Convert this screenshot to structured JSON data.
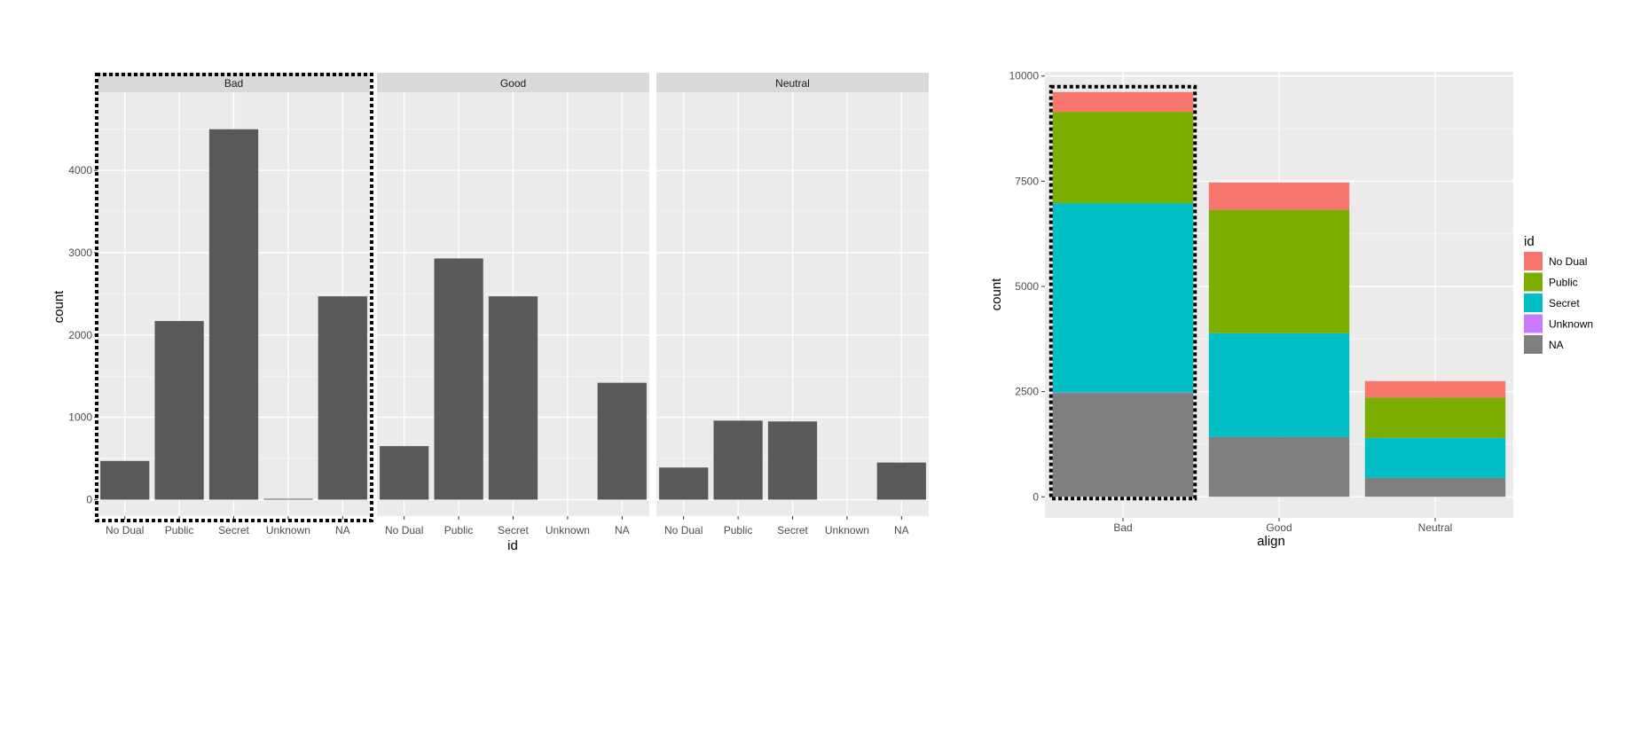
{
  "chart_data": [
    {
      "type": "bar",
      "facet_by": "align",
      "facets": [
        "Bad",
        "Good",
        "Neutral"
      ],
      "categories": [
        "No Dual",
        "Public",
        "Secret",
        "Unknown",
        "NA"
      ],
      "series": [
        {
          "facet": "Bad",
          "values": [
            470,
            2170,
            4500,
            10,
            2470
          ]
        },
        {
          "facet": "Good",
          "values": [
            650,
            2930,
            2470,
            0,
            1420
          ]
        },
        {
          "facet": "Neutral",
          "values": [
            390,
            960,
            950,
            0,
            450
          ]
        }
      ],
      "xlabel": "id",
      "ylabel": "count",
      "ylim": [
        -200,
        4950
      ],
      "yticks": [
        0,
        1000,
        2000,
        3000,
        4000
      ],
      "bar_color": "#595959",
      "highlight": {
        "facet": "Bad",
        "style": "dotted-box"
      }
    },
    {
      "type": "bar",
      "stacked": true,
      "categories": [
        "Bad",
        "Good",
        "Neutral"
      ],
      "series": [
        {
          "name": "No Dual",
          "color": "#F8766D",
          "values": [
            470,
            650,
            390
          ]
        },
        {
          "name": "Public",
          "color": "#7CAE00",
          "values": [
            2170,
            2930,
            960
          ]
        },
        {
          "name": "Secret",
          "color": "#00BFC4",
          "values": [
            4500,
            2470,
            950
          ]
        },
        {
          "name": "Unknown",
          "color": "#C77CFF",
          "values": [
            10,
            0,
            0
          ]
        },
        {
          "name": "NA",
          "color": "#7F7F7F",
          "values": [
            2470,
            1420,
            450
          ]
        }
      ],
      "stack_order_bottom_to_top": [
        "NA",
        "Unknown",
        "Secret",
        "Public",
        "No Dual"
      ],
      "xlabel": "align",
      "ylabel": "count",
      "ylim": [
        -500,
        10100
      ],
      "yticks": [
        0,
        2500,
        5000,
        7500,
        10000
      ],
      "legend_title": "id",
      "legend_position": "right",
      "highlight": {
        "category": "Bad",
        "style": "dotted-box"
      }
    }
  ]
}
